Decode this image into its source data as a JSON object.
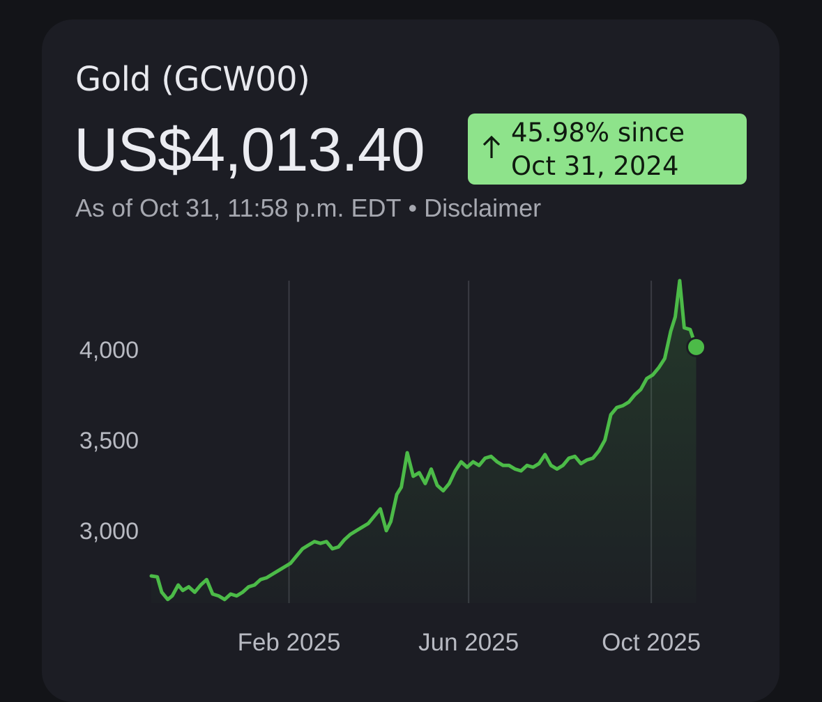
{
  "header": {
    "title": "Gold (GCW00)",
    "price": "US$4,013.40",
    "change_line1": "45.98% since",
    "change_line2": "Oct 31, 2024",
    "change_direction_icon": "arrow-up-icon",
    "as_of": "As of Oct 31, 11:58 p.m. EDT",
    "separator": "•",
    "disclaimer_label": "Disclaimer"
  },
  "colors": {
    "background": "#131418",
    "card": "#1c1d24",
    "line": "#4cbb48",
    "badge": "#8ee38b",
    "gridline": "#3a3b43"
  },
  "chart_data": {
    "type": "area",
    "title": "",
    "xlabel": "",
    "ylabel": "",
    "x_tick_labels": [
      "Feb 2025",
      "Jun 2025",
      "Oct 2025"
    ],
    "x_tick_dates": [
      "2025-02-01",
      "2025-06-01",
      "2025-10-01"
    ],
    "y_ticks": [
      3000,
      3500,
      4000
    ],
    "y_tick_labels": [
      "3,000",
      "3,500",
      "4,000"
    ],
    "ylim": [
      2600,
      4380
    ],
    "xlim": [
      "2024-11-01",
      "2025-11-10"
    ],
    "grid": "vertical at x ticks",
    "legend": "none",
    "series": [
      {
        "x": [
          "2024-11-01",
          "2024-11-05",
          "2024-11-08",
          "2024-11-12",
          "2024-11-15",
          "2024-11-19",
          "2024-11-22",
          "2024-11-26",
          "2024-11-30",
          "2024-12-04",
          "2024-12-08",
          "2024-12-12",
          "2024-12-16",
          "2024-12-20",
          "2024-12-24",
          "2024-12-28",
          "2025-01-01",
          "2025-01-05",
          "2025-01-09",
          "2025-01-13",
          "2025-01-17",
          "2025-01-21",
          "2025-01-25",
          "2025-01-29",
          "2025-02-02",
          "2025-02-06",
          "2025-02-10",
          "2025-02-14",
          "2025-02-18",
          "2025-02-22",
          "2025-02-26",
          "2025-03-02",
          "2025-03-06",
          "2025-03-10",
          "2025-03-14",
          "2025-03-18",
          "2025-03-22",
          "2025-03-26",
          "2025-03-30",
          "2025-04-03",
          "2025-04-07",
          "2025-04-10",
          "2025-04-14",
          "2025-04-17",
          "2025-04-21",
          "2025-04-25",
          "2025-04-29",
          "2025-05-03",
          "2025-05-07",
          "2025-05-11",
          "2025-05-15",
          "2025-05-19",
          "2025-05-23",
          "2025-05-27",
          "2025-05-31",
          "2025-06-04",
          "2025-06-08",
          "2025-06-12",
          "2025-06-16",
          "2025-06-20",
          "2025-06-24",
          "2025-06-28",
          "2025-07-02",
          "2025-07-06",
          "2025-07-10",
          "2025-07-14",
          "2025-07-18",
          "2025-07-22",
          "2025-07-26",
          "2025-07-30",
          "2025-08-03",
          "2025-08-07",
          "2025-08-11",
          "2025-08-15",
          "2025-08-19",
          "2025-08-23",
          "2025-08-27",
          "2025-08-31",
          "2025-09-04",
          "2025-09-08",
          "2025-09-12",
          "2025-09-16",
          "2025-09-20",
          "2025-09-24",
          "2025-09-28",
          "2025-10-02",
          "2025-10-06",
          "2025-10-10",
          "2025-10-14",
          "2025-10-17",
          "2025-10-20",
          "2025-10-23",
          "2025-10-27",
          "2025-10-31"
        ],
        "y": [
          2750,
          2745,
          2660,
          2620,
          2640,
          2700,
          2670,
          2690,
          2660,
          2700,
          2730,
          2650,
          2640,
          2620,
          2650,
          2640,
          2660,
          2690,
          2700,
          2730,
          2740,
          2760,
          2780,
          2800,
          2820,
          2860,
          2900,
          2920,
          2940,
          2930,
          2940,
          2900,
          2910,
          2950,
          2980,
          3000,
          3020,
          3040,
          3080,
          3120,
          3000,
          3050,
          3200,
          3240,
          3430,
          3300,
          3320,
          3260,
          3340,
          3250,
          3220,
          3260,
          3330,
          3380,
          3350,
          3380,
          3360,
          3400,
          3410,
          3380,
          3360,
          3360,
          3340,
          3330,
          3360,
          3350,
          3370,
          3420,
          3360,
          3340,
          3360,
          3400,
          3410,
          3370,
          3390,
          3400,
          3440,
          3500,
          3640,
          3680,
          3690,
          3710,
          3750,
          3780,
          3840,
          3860,
          3900,
          3950,
          4100,
          4180,
          4380,
          4120,
          4110,
          4013.4
        ]
      }
    ]
  }
}
